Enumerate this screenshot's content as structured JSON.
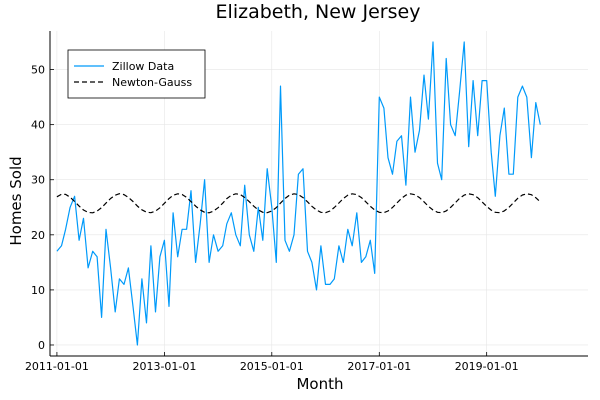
{
  "chart_data": {
    "type": "line",
    "title": "Elizabeth, New Jersey",
    "xlabel": "Month",
    "ylabel": "Homes Sold",
    "xlim": [
      "2010-11-15",
      "2020-11-20"
    ],
    "ylim": [
      -2,
      57
    ],
    "x_ticks": [
      "2011-01-01",
      "2013-01-01",
      "2015-01-01",
      "2017-01-01",
      "2019-01-01"
    ],
    "y_ticks": [
      0,
      10,
      20,
      30,
      40,
      50
    ],
    "grid": true,
    "legend_position": "top-left",
    "start": "2011-01-01",
    "frequency": "monthly",
    "series": [
      {
        "name": "Zillow Data",
        "color": "#009AFA",
        "style": "solid",
        "values": [
          17,
          18,
          21,
          25,
          27,
          19,
          23,
          14,
          17,
          16,
          5,
          21,
          14,
          6,
          12,
          11,
          14,
          7,
          0,
          12,
          4,
          18,
          6,
          16,
          19,
          7,
          24,
          16,
          21,
          21,
          28,
          15,
          22,
          30,
          15,
          20,
          17,
          18,
          22,
          24,
          20,
          18,
          29,
          20,
          17,
          25,
          19,
          32,
          25,
          15,
          47,
          19,
          17,
          20,
          31,
          32,
          17,
          15,
          10,
          18,
          11,
          11,
          12,
          18,
          15,
          21,
          18,
          24,
          15,
          16,
          19,
          13,
          45,
          43,
          34,
          31,
          37,
          38,
          29,
          45,
          35,
          39,
          49,
          41,
          55,
          33,
          30,
          52,
          40,
          38,
          46,
          55,
          36,
          48,
          38,
          48,
          48,
          35,
          27,
          38,
          43,
          31,
          31,
          45,
          47,
          45,
          34,
          44,
          40
        ]
      },
      {
        "name": "Newton-Gauss",
        "color": "#000000",
        "style": "dashed",
        "values": [
          26.9,
          27.37,
          27.34,
          26.82,
          26.05,
          25.21,
          24.51,
          24.07,
          23.99,
          24.31,
          24.94,
          25.76,
          26.6,
          27.2,
          27.46,
          27.3,
          26.79,
          26.04,
          25.22,
          24.54,
          24.1,
          24.01,
          24.3,
          24.91,
          25.73,
          26.57,
          27.18,
          27.45,
          27.32,
          26.79,
          26.03,
          25.21,
          24.52,
          24.08,
          24.0,
          24.3,
          24.92,
          25.74,
          26.57,
          27.18,
          27.45,
          27.31,
          26.78,
          26.02,
          25.2,
          24.52,
          24.09,
          24.01,
          24.32,
          24.94,
          25.76,
          26.59,
          27.2,
          27.45,
          27.3,
          26.76,
          26.0,
          25.18,
          24.51,
          24.08,
          24.01,
          24.32,
          24.95,
          25.77,
          26.6,
          27.2,
          27.45,
          27.3,
          26.75,
          26.0,
          25.18,
          24.51,
          24.08,
          24.01,
          24.33,
          24.96,
          25.78,
          26.61,
          27.21,
          27.45,
          27.29,
          26.75,
          25.99,
          25.17,
          24.5,
          24.08,
          24.02,
          24.34,
          24.97,
          25.79,
          26.62,
          27.21,
          27.45,
          27.28,
          26.74,
          25.98,
          25.16,
          24.49,
          24.08,
          24.02,
          24.34,
          24.97,
          25.8,
          26.63,
          27.22,
          27.45,
          27.28,
          26.73,
          25.97
        ]
      }
    ]
  }
}
